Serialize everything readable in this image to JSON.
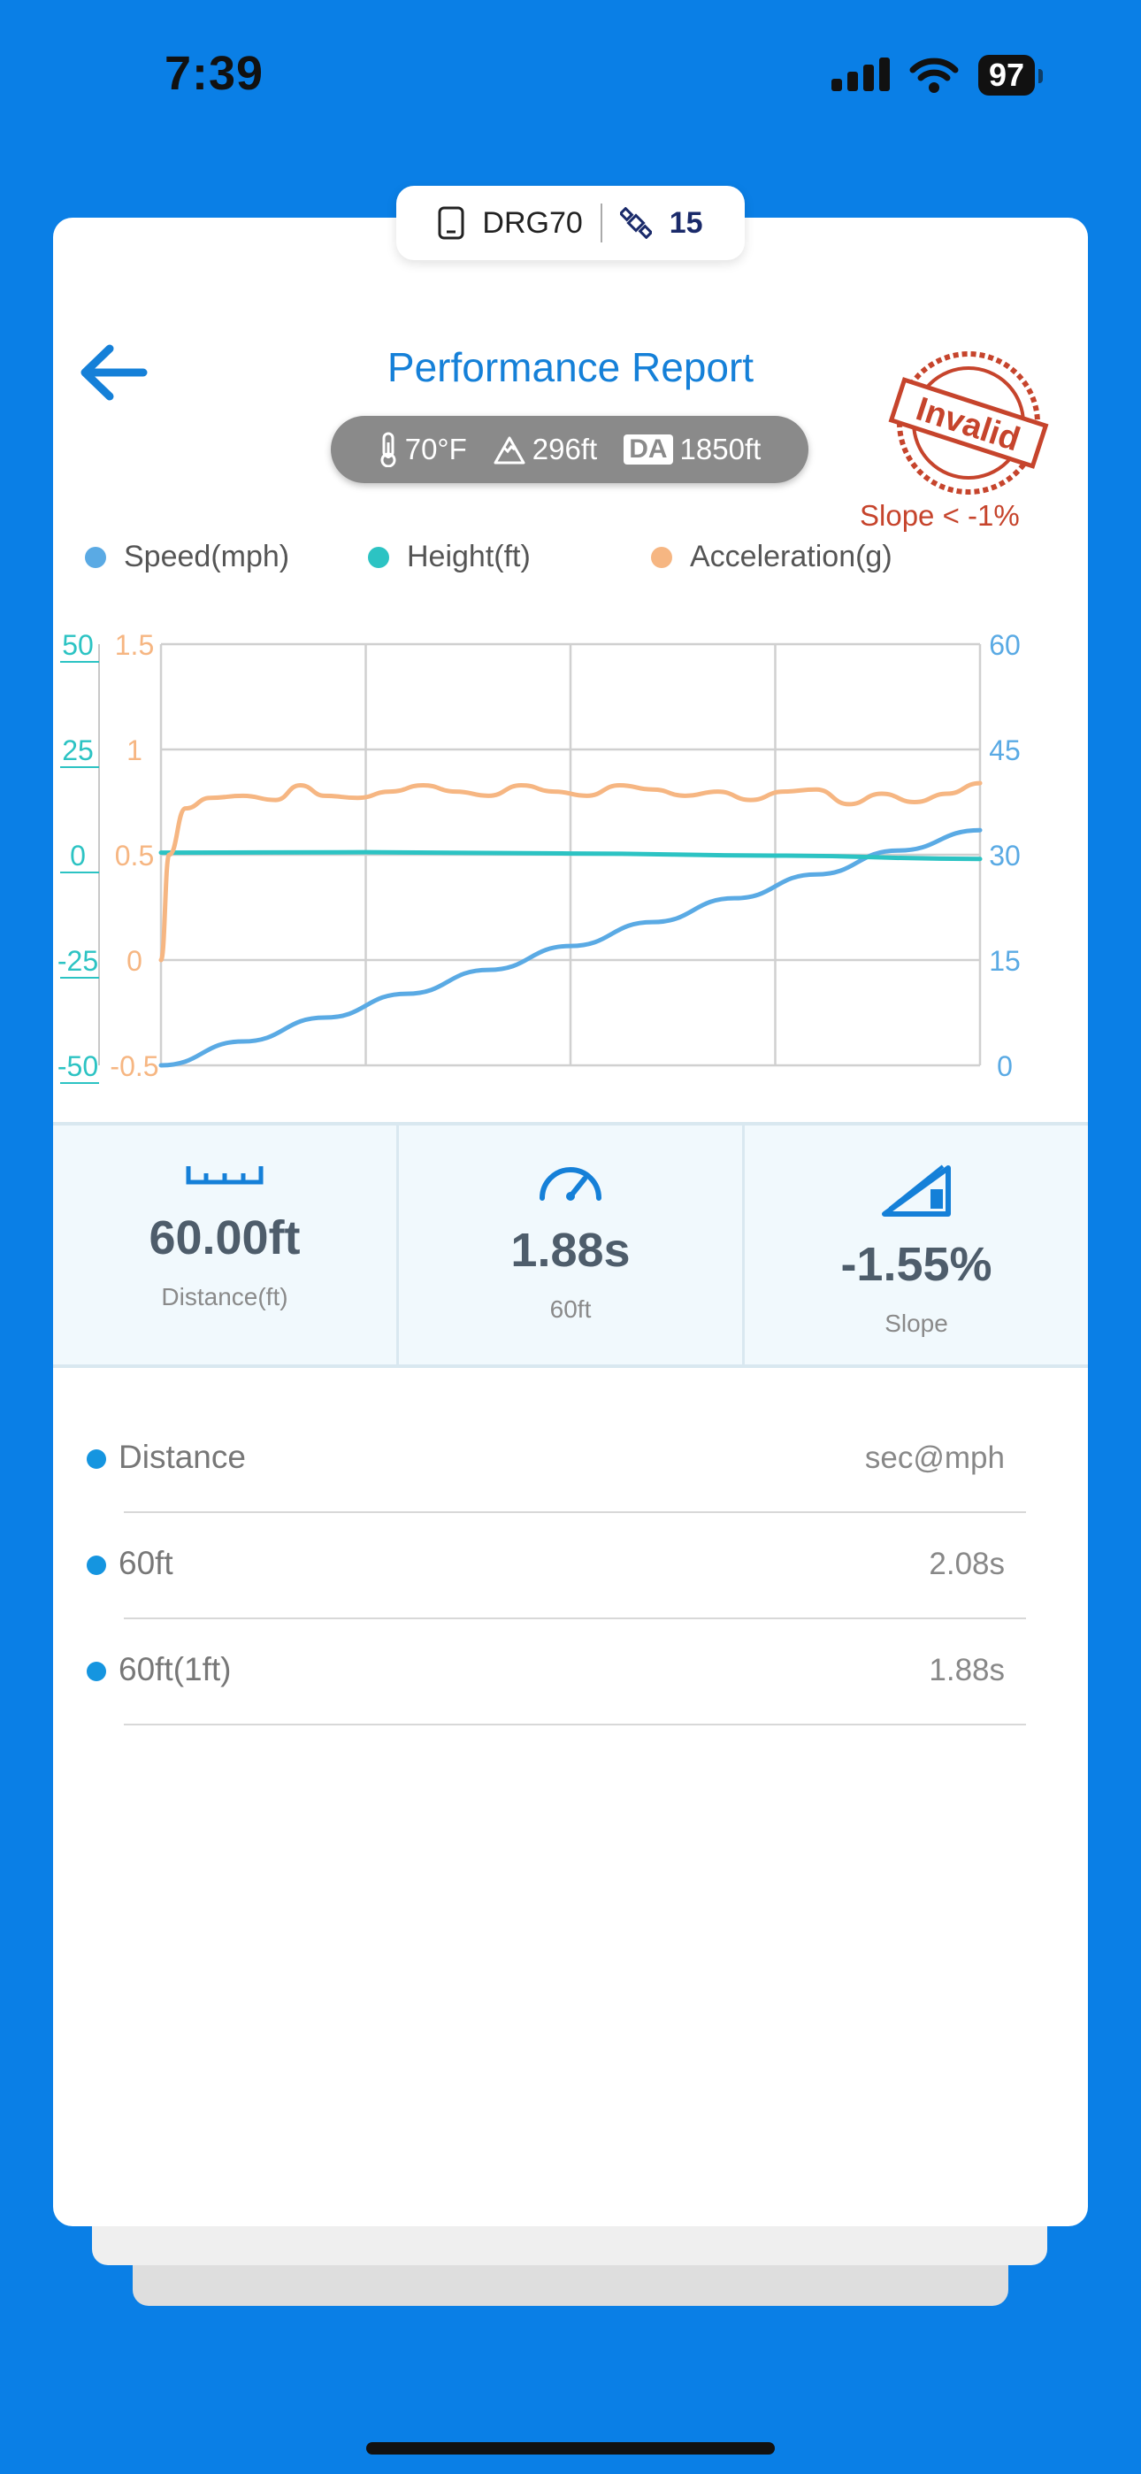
{
  "status_bar": {
    "time": "7:39",
    "battery": "97"
  },
  "device": {
    "name": "DRG70",
    "satellites": "15"
  },
  "header": {
    "title": "Performance Report",
    "stamp": "Invalid",
    "stamp_note": "Slope < -1%"
  },
  "conditions": {
    "temperature": "70°F",
    "altitude": "296ft",
    "da_label": "DA",
    "density_altitude": "1850ft"
  },
  "chart_data": {
    "type": "line",
    "legend_position": "top",
    "grid": true,
    "series": [
      {
        "name": "Speed(mph)",
        "color": "#5aaae4",
        "axis": "right",
        "ylim": [
          0,
          60
        ],
        "x": [
          0,
          0.1,
          0.2,
          0.3,
          0.4,
          0.5,
          0.6,
          0.7,
          0.8,
          0.9,
          1.0
        ],
        "y": [
          0,
          3.4,
          6.8,
          10.2,
          13.6,
          17.0,
          20.4,
          23.8,
          27.2,
          30.6,
          33.5
        ]
      },
      {
        "name": "Height(ft)",
        "color": "#2cc3c3",
        "axis": "left-outer",
        "ylim": [
          -50,
          50
        ],
        "x": [
          0,
          0.25,
          0.5,
          0.75,
          1.0
        ],
        "y": [
          0.5,
          0.6,
          0.3,
          -0.2,
          -1.0
        ]
      },
      {
        "name": "Acceleration(g)",
        "color": "#f6b682",
        "axis": "left-inner",
        "ylim": [
          -0.5,
          1.5
        ],
        "x": [
          0,
          0.01,
          0.03,
          0.06,
          0.1,
          0.14,
          0.17,
          0.2,
          0.24,
          0.28,
          0.32,
          0.36,
          0.4,
          0.44,
          0.48,
          0.52,
          0.56,
          0.6,
          0.64,
          0.68,
          0.72,
          0.76,
          0.8,
          0.84,
          0.88,
          0.92,
          0.96,
          1.0
        ],
        "y": [
          0.0,
          0.5,
          0.72,
          0.77,
          0.78,
          0.76,
          0.83,
          0.78,
          0.77,
          0.8,
          0.83,
          0.8,
          0.78,
          0.83,
          0.8,
          0.78,
          0.83,
          0.81,
          0.78,
          0.8,
          0.76,
          0.8,
          0.81,
          0.74,
          0.79,
          0.75,
          0.79,
          0.84
        ]
      }
    ],
    "left_outer_ticks": [
      "50",
      "25",
      "0",
      "-25",
      "-50"
    ],
    "left_inner_ticks": [
      "1.5",
      "1",
      "0.5",
      "0",
      "-0.5"
    ],
    "right_ticks": [
      "60",
      "45",
      "30",
      "15",
      "0"
    ]
  },
  "metrics": [
    {
      "icon": "ruler-icon",
      "value": "60.00ft",
      "label": "Distance(ft)"
    },
    {
      "icon": "speedometer-icon",
      "value": "1.88s",
      "label": "60ft"
    },
    {
      "icon": "slope-icon",
      "value": "-1.55%",
      "label": "Slope"
    }
  ],
  "results": {
    "header": {
      "name": "Distance",
      "value": "sec@mph"
    },
    "rows": [
      {
        "name": "60ft",
        "value": "2.08s"
      },
      {
        "name": "60ft(1ft)",
        "value": "1.88s"
      }
    ]
  }
}
